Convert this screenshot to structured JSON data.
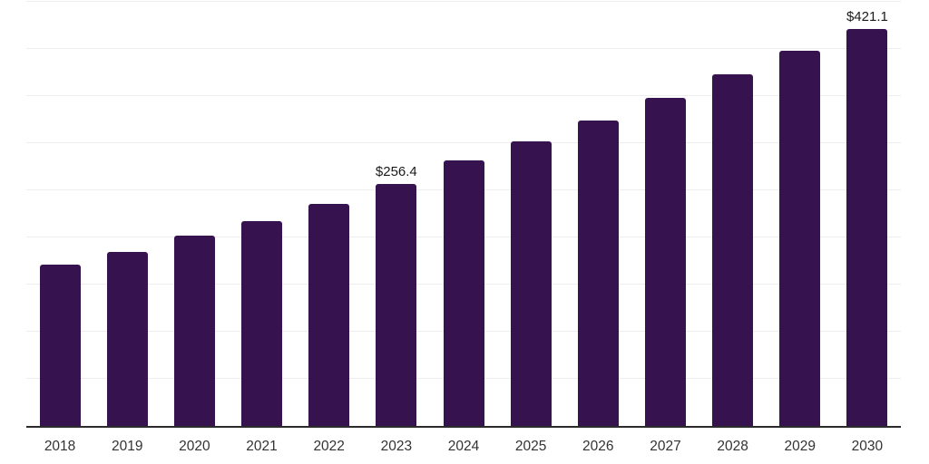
{
  "chart_data": {
    "type": "bar",
    "title": "",
    "xlabel": "",
    "ylabel": "",
    "categories": [
      "2018",
      "2019",
      "2020",
      "2021",
      "2022",
      "2023",
      "2024",
      "2025",
      "2026",
      "2027",
      "2028",
      "2029",
      "2030"
    ],
    "values": [
      171.2,
      184.6,
      202.4,
      217.3,
      235.6,
      256.4,
      281.3,
      301.9,
      323.6,
      348.5,
      373.1,
      398.5,
      421.1
    ],
    "data_labels": {
      "2023": "$256.4",
      "2030": "$421.1"
    },
    "ylim": [
      0,
      450
    ],
    "grid_step": 50,
    "grid": true,
    "y_axis_labels_visible": false,
    "legend": "none",
    "colors": {
      "bar": "#36124E",
      "axis_line": "#2b2b2b",
      "gridline": "#ededed",
      "x_tick_label": "#333333",
      "data_label": "#1a1a1a",
      "background": "#ffffff"
    }
  }
}
